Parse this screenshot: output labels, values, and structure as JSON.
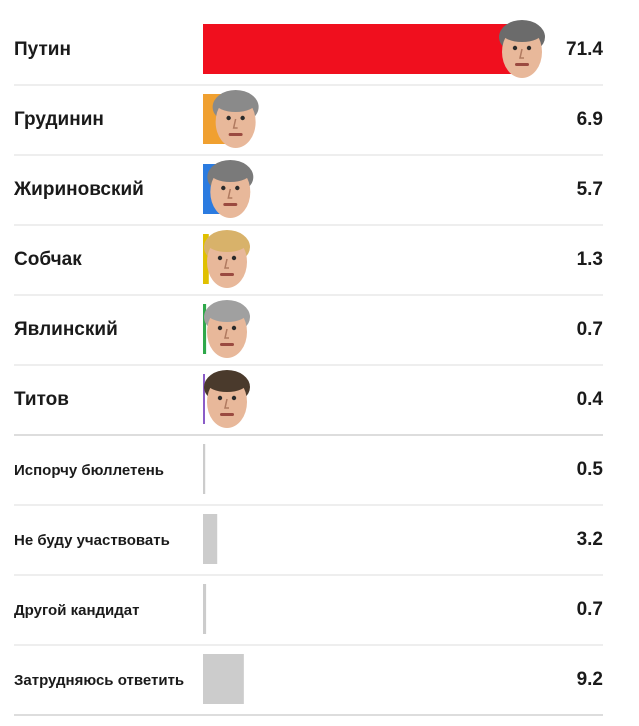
{
  "chart_data": {
    "type": "bar",
    "orientation": "horizontal",
    "xlim": [
      0,
      71.4
    ],
    "grid": false,
    "categories": [
      "Путин",
      "Грудинин",
      "Жириновский",
      "Собчак",
      "Явлинский",
      "Титов",
      "Испорчу бюллетень",
      "Не буду участвовать",
      "Другой кандидат",
      "Затрудняюсь ответить"
    ],
    "values": [
      71.4,
      6.9,
      5.7,
      1.3,
      0.7,
      0.4,
      0.5,
      3.2,
      0.7,
      9.2
    ],
    "value_labels": [
      "71.4",
      "6.9",
      "5.7",
      "1.3",
      "0.7",
      "0.4",
      "0.5",
      "3.2",
      "0.7",
      "9.2"
    ],
    "colors": [
      "#f00f1e",
      "#f0a030",
      "#2b7be0",
      "#e0c000",
      "#2ea84a",
      "#8a5cc8",
      "#cccccc",
      "#cccccc",
      "#cccccc",
      "#cccccc"
    ],
    "row_kind": [
      "candidate",
      "candidate",
      "candidate",
      "candidate",
      "candidate",
      "candidate",
      "other",
      "other",
      "other",
      "other"
    ],
    "portraits": [
      "putin-portrait",
      "grudinin-portrait",
      "zhirinovsky-portrait",
      "sobchak-portrait",
      "yavlinsky-portrait",
      "titov-portrait",
      null,
      null,
      null,
      null
    ],
    "portrait_hair": [
      "#6b6b6b",
      "#8a8a8a",
      "#7a7a7a",
      "#d8b26a",
      "#a0a0a0",
      "#4a3a2c",
      null,
      null,
      null,
      null
    ],
    "separator_color": "#dddddd",
    "section_separator_color": "#bbbbbb"
  }
}
